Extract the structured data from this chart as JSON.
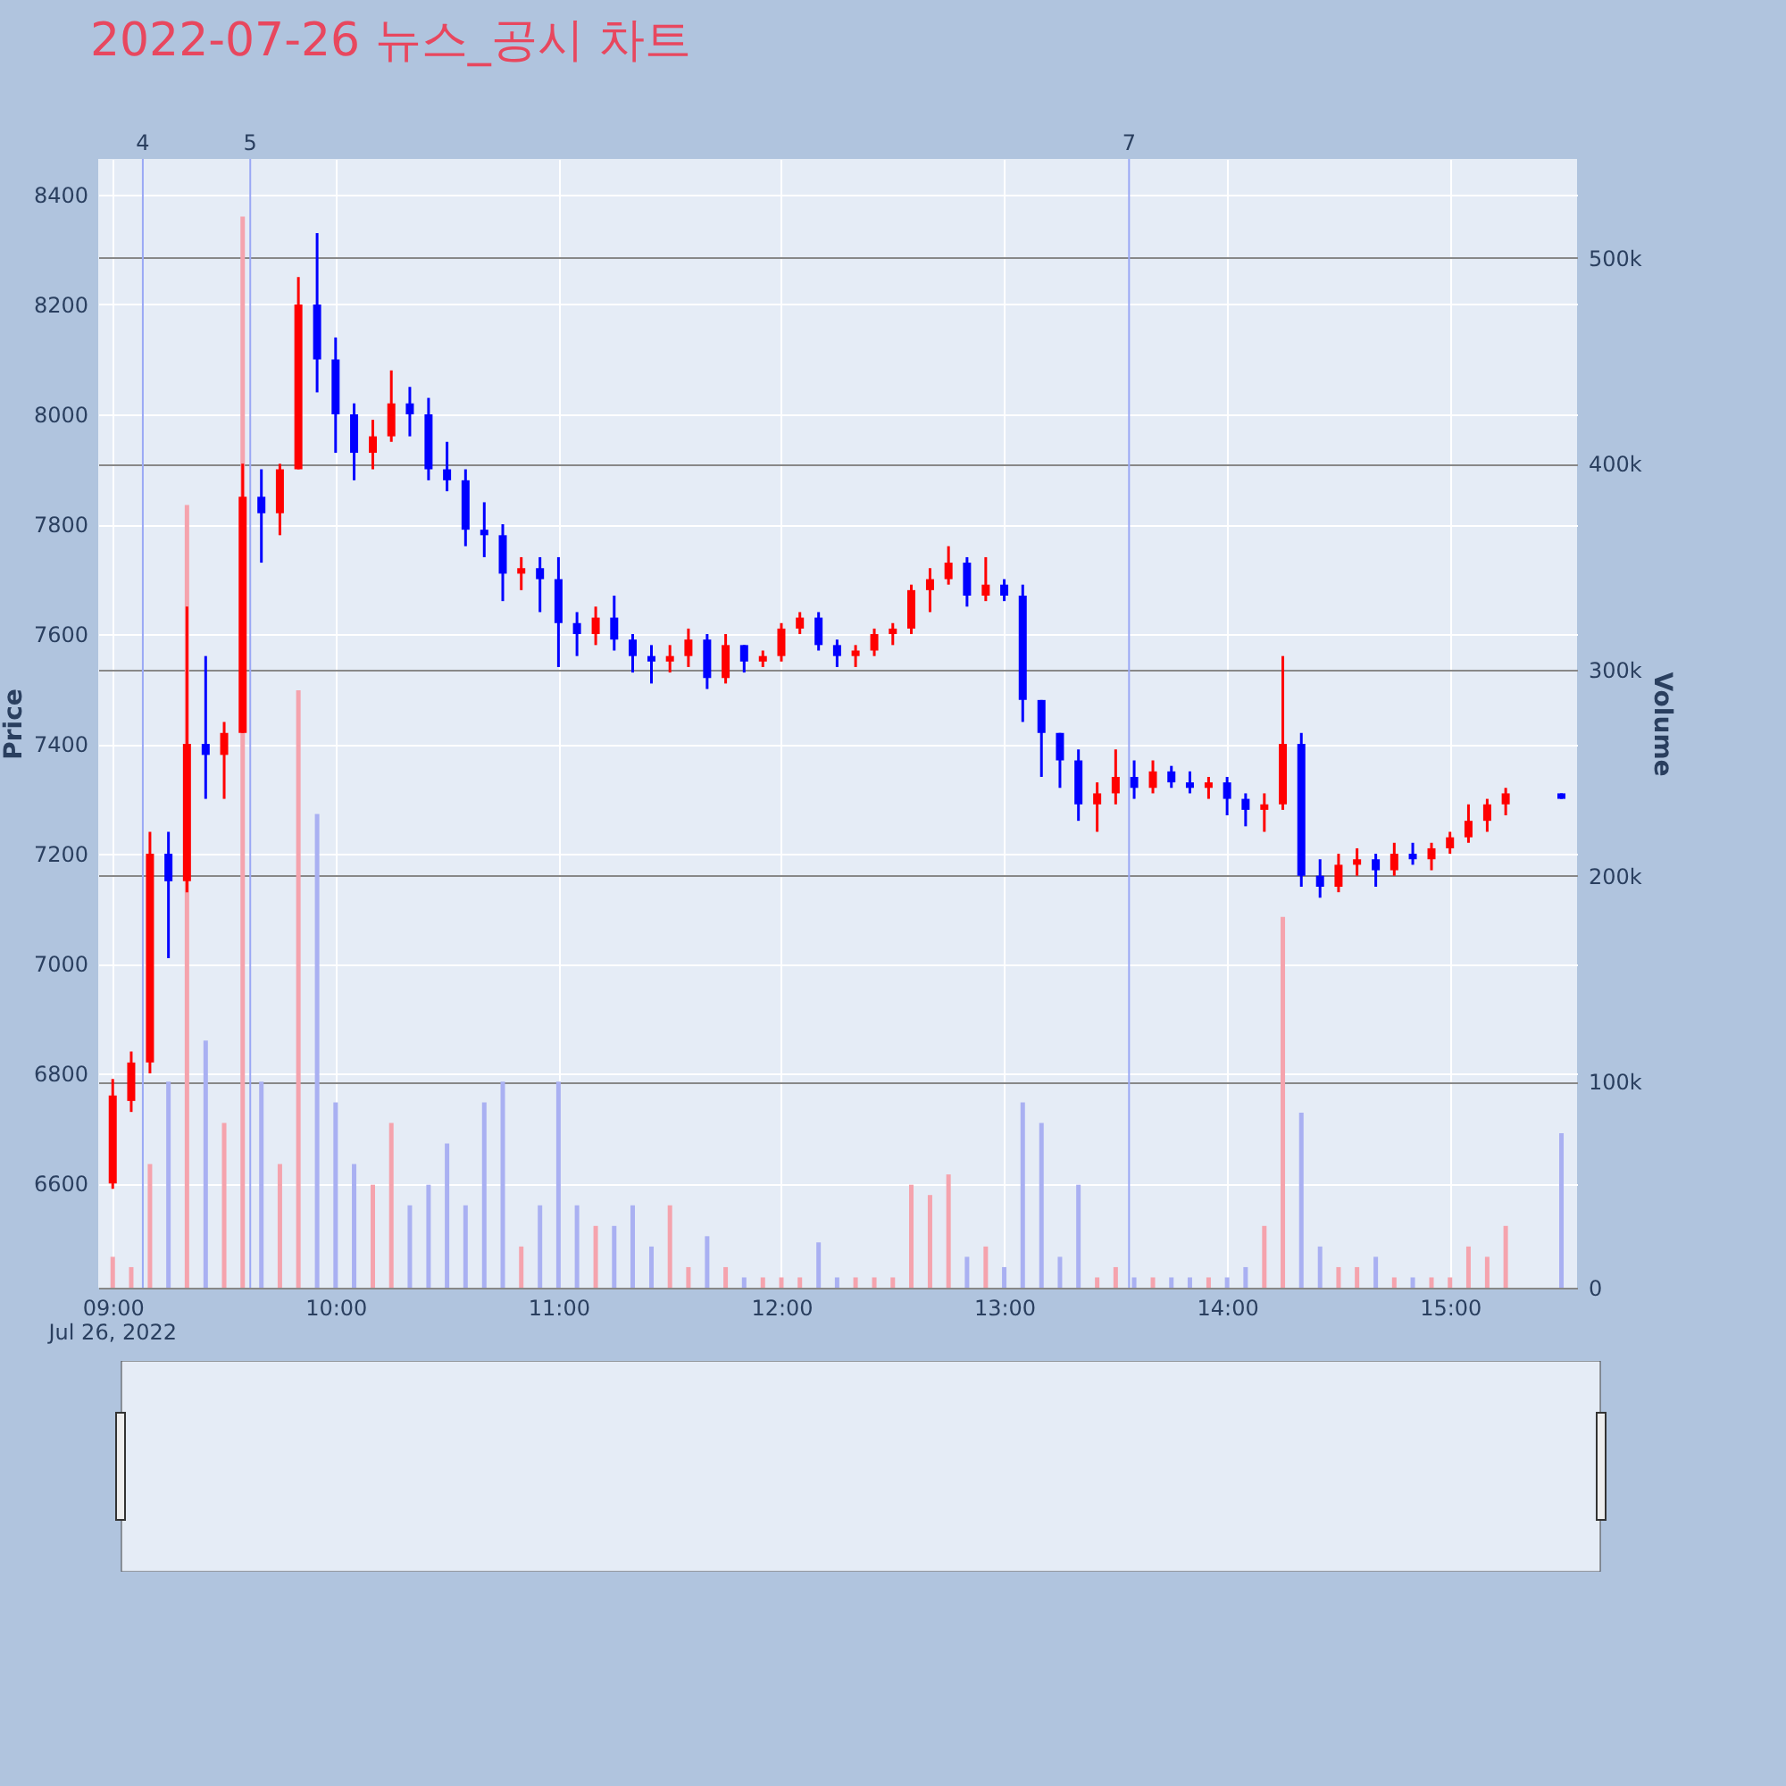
{
  "chart_data": {
    "type": "candlestick",
    "title": "2022-07-26 뉴스_공시 차트",
    "ylabel": "Price",
    "y2label": "Volume",
    "annotations": [
      "Jul 26, 2022",
      "4",
      "5",
      "7"
    ],
    "xlim": [
      8.975,
      15.53
    ],
    "xticks": [
      {
        "value": 9,
        "label": "09:00"
      },
      {
        "value": 10,
        "label": "10:00"
      },
      {
        "value": 11,
        "label": "11:00"
      },
      {
        "value": 12,
        "label": "12:00"
      },
      {
        "value": 13,
        "label": "13:00"
      },
      {
        "value": 14,
        "label": "14:00"
      },
      {
        "value": 15,
        "label": "15:00"
      }
    ],
    "ylim": [
      6410,
      8465
    ],
    "yticks": [
      6600,
      6800,
      7000,
      7200,
      7400,
      7600,
      7800,
      8000,
      8200,
      8400
    ],
    "y2lim": [
      0,
      548000
    ],
    "y2ticks": [
      {
        "value": 0,
        "label": "0"
      },
      {
        "value": 100000,
        "label": "100k"
      },
      {
        "value": 200000,
        "label": "200k"
      },
      {
        "value": 300000,
        "label": "300k"
      },
      {
        "value": 400000,
        "label": "400k"
      },
      {
        "value": 500000,
        "label": "500k"
      }
    ],
    "grid": true,
    "ref_lines": [
      {
        "axis": "x",
        "value": 9.135,
        "color": "#9aa8f5"
      },
      {
        "axis": "x",
        "value": 9.617,
        "color": "#9aa8f5"
      },
      {
        "axis": "x",
        "value": 13.56,
        "color": "#9aa8f5"
      }
    ],
    "series": [
      {
        "type": "bar",
        "axis": "y2",
        "x": [
          9,
          9.083,
          9.167,
          9.25,
          9.333,
          9.417,
          9.5,
          9.583,
          9.667,
          9.75,
          9.833,
          9.917,
          10,
          10.083,
          10.167,
          10.25,
          10.333,
          10.417,
          10.5,
          10.583,
          10.667,
          10.75,
          10.833,
          10.917,
          11,
          11.083,
          11.167,
          11.25,
          11.333,
          11.417,
          11.5,
          11.583,
          11.667,
          11.75,
          11.833,
          11.917,
          12,
          12.083,
          12.167,
          12.25,
          12.333,
          12.417,
          12.5,
          12.583,
          12.667,
          12.75,
          12.833,
          12.917,
          13,
          13.083,
          13.167,
          13.25,
          13.333,
          13.417,
          13.5,
          13.583,
          13.667,
          13.75,
          13.833,
          13.917,
          14,
          14.083,
          14.167,
          14.25,
          14.333,
          14.417,
          14.5,
          14.583,
          14.667,
          14.75,
          14.833,
          14.917,
          15,
          15.083,
          15.167,
          15.25,
          15.5
        ],
        "values": [
          15000,
          10000,
          60000,
          100000,
          380000,
          120000,
          80000,
          520000,
          100000,
          60000,
          290000,
          230000,
          90000,
          60000,
          50000,
          80000,
          40000,
          50000,
          70000,
          40000,
          90000,
          100000,
          20000,
          40000,
          100000,
          40000,
          30000,
          30000,
          40000,
          20000,
          40000,
          10000,
          25000,
          10000,
          5000,
          5000,
          5000,
          5000,
          22000,
          5000,
          5000,
          5000,
          5000,
          50000,
          45000,
          55000,
          15000,
          20000,
          10000,
          90000,
          80000,
          15000,
          50000,
          5000,
          10000,
          5000,
          5000,
          5000,
          5000,
          5000,
          5000,
          10000,
          30000,
          180000,
          85000,
          20000,
          10000,
          10000,
          15000,
          5000,
          5000,
          5000,
          5000,
          20000,
          15000,
          30000,
          75000
        ],
        "colors": [
          "#f5a3ad",
          "#f5a3ad",
          "#f5a3ad",
          "#a9b0f2",
          "#f5a3ad",
          "#a9b0f2",
          "#f5a3ad",
          "#f5a3ad",
          "#a9b0f2",
          "#f5a3ad",
          "#f5a3ad",
          "#a9b0f2",
          "#a9b0f2",
          "#a9b0f2",
          "#f5a3ad",
          "#f5a3ad",
          "#a9b0f2",
          "#a9b0f2",
          "#a9b0f2",
          "#a9b0f2",
          "#a9b0f2",
          "#a9b0f2",
          "#f5a3ad",
          "#a9b0f2",
          "#a9b0f2",
          "#a9b0f2",
          "#f5a3ad",
          "#a9b0f2",
          "#a9b0f2",
          "#a9b0f2",
          "#f5a3ad",
          "#f5a3ad",
          "#a9b0f2",
          "#f5a3ad",
          "#a9b0f2",
          "#f5a3ad",
          "#f5a3ad",
          "#f5a3ad",
          "#a9b0f2",
          "#a9b0f2",
          "#f5a3ad",
          "#f5a3ad",
          "#f5a3ad",
          "#f5a3ad",
          "#f5a3ad",
          "#f5a3ad",
          "#a9b0f2",
          "#f5a3ad",
          "#a9b0f2",
          "#a9b0f2",
          "#a9b0f2",
          "#a9b0f2",
          "#a9b0f2",
          "#f5a3ad",
          "#f5a3ad",
          "#a9b0f2",
          "#f5a3ad",
          "#a9b0f2",
          "#a9b0f2",
          "#f5a3ad",
          "#a9b0f2",
          "#a9b0f2",
          "#f5a3ad",
          "#f5a3ad",
          "#a9b0f2",
          "#a9b0f2",
          "#f5a3ad",
          "#f5a3ad",
          "#a9b0f2",
          "#f5a3ad",
          "#a9b0f2",
          "#f5a3ad",
          "#f5a3ad",
          "#f5a3ad",
          "#f5a3ad",
          "#f5a3ad",
          "#a9b0f2"
        ]
      },
      {
        "x": [
          9,
          9.083,
          9.167,
          9.25,
          9.333,
          9.417,
          9.5,
          9.583,
          9.667,
          9.75,
          9.833,
          9.917,
          10,
          10.083,
          10.167,
          10.25,
          10.333,
          10.417,
          10.5,
          10.583,
          10.667,
          10.75,
          10.833,
          10.917,
          11,
          11.083,
          11.167,
          11.25,
          11.333,
          11.417,
          11.5,
          11.583,
          11.667,
          11.75,
          11.833,
          11.917,
          12,
          12.083,
          12.167,
          12.25,
          12.333,
          12.417,
          12.5,
          12.583,
          12.667,
          12.75,
          12.833,
          12.917,
          13,
          13.083,
          13.167,
          13.25,
          13.333,
          13.417,
          13.5,
          13.583,
          13.667,
          13.75,
          13.833,
          13.917,
          14,
          14.083,
          14.167,
          14.25,
          14.333,
          14.417,
          14.5,
          14.583,
          14.667,
          14.75,
          14.833,
          14.917,
          15,
          15.083,
          15.167,
          15.25,
          15.5
        ],
        "ohlc": [
          [
            6600,
            6790,
            6590,
            6760
          ],
          [
            6750,
            6840,
            6730,
            6820
          ],
          [
            6820,
            7240,
            6800,
            7200
          ],
          [
            7200,
            7240,
            7010,
            7150
          ],
          [
            7150,
            7650,
            7130,
            7400
          ],
          [
            7400,
            7560,
            7300,
            7380
          ],
          [
            7380,
            7440,
            7300,
            7420
          ],
          [
            7420,
            7910,
            7420,
            7850
          ],
          [
            7850,
            7900,
            7730,
            7820
          ],
          [
            7820,
            7910,
            7780,
            7900
          ],
          [
            7900,
            8250,
            7900,
            8200
          ],
          [
            8200,
            8330,
            8040,
            8100
          ],
          [
            8100,
            8140,
            7930,
            8000
          ],
          [
            8000,
            8020,
            7880,
            7930
          ],
          [
            7930,
            7990,
            7900,
            7960
          ],
          [
            7960,
            8080,
            7950,
            8020
          ],
          [
            8020,
            8050,
            7960,
            8000
          ],
          [
            8000,
            8030,
            7880,
            7900
          ],
          [
            7900,
            7950,
            7860,
            7880
          ],
          [
            7880,
            7900,
            7760,
            7790
          ],
          [
            7790,
            7840,
            7740,
            7780
          ],
          [
            7780,
            7800,
            7660,
            7710
          ],
          [
            7710,
            7740,
            7680,
            7720
          ],
          [
            7720,
            7740,
            7640,
            7700
          ],
          [
            7700,
            7740,
            7540,
            7620
          ],
          [
            7620,
            7640,
            7560,
            7600
          ],
          [
            7600,
            7650,
            7580,
            7630
          ],
          [
            7630,
            7670,
            7570,
            7590
          ],
          [
            7590,
            7600,
            7530,
            7560
          ],
          [
            7560,
            7580,
            7510,
            7550
          ],
          [
            7550,
            7580,
            7530,
            7560
          ],
          [
            7560,
            7610,
            7540,
            7590
          ],
          [
            7590,
            7600,
            7500,
            7520
          ],
          [
            7520,
            7600,
            7510,
            7580
          ],
          [
            7580,
            7580,
            7530,
            7550
          ],
          [
            7550,
            7570,
            7540,
            7560
          ],
          [
            7560,
            7620,
            7550,
            7610
          ],
          [
            7610,
            7640,
            7600,
            7630
          ],
          [
            7630,
            7640,
            7570,
            7580
          ],
          [
            7580,
            7590,
            7540,
            7560
          ],
          [
            7560,
            7580,
            7540,
            7570
          ],
          [
            7570,
            7610,
            7560,
            7600
          ],
          [
            7600,
            7620,
            7580,
            7610
          ],
          [
            7610,
            7690,
            7600,
            7680
          ],
          [
            7680,
            7720,
            7640,
            7700
          ],
          [
            7700,
            7760,
            7690,
            7730
          ],
          [
            7730,
            7740,
            7650,
            7670
          ],
          [
            7670,
            7740,
            7660,
            7690
          ],
          [
            7690,
            7700,
            7660,
            7670
          ],
          [
            7670,
            7690,
            7440,
            7480
          ],
          [
            7480,
            7480,
            7340,
            7420
          ],
          [
            7420,
            7420,
            7320,
            7370
          ],
          [
            7370,
            7390,
            7260,
            7290
          ],
          [
            7290,
            7330,
            7240,
            7310
          ],
          [
            7310,
            7390,
            7290,
            7340
          ],
          [
            7340,
            7370,
            7300,
            7320
          ],
          [
            7320,
            7370,
            7310,
            7350
          ],
          [
            7350,
            7360,
            7320,
            7330
          ],
          [
            7330,
            7350,
            7310,
            7320
          ],
          [
            7320,
            7340,
            7300,
            7330
          ],
          [
            7330,
            7340,
            7270,
            7300
          ],
          [
            7300,
            7310,
            7250,
            7280
          ],
          [
            7280,
            7310,
            7240,
            7290
          ],
          [
            7290,
            7560,
            7280,
            7400
          ],
          [
            7400,
            7420,
            7140,
            7160
          ],
          [
            7160,
            7190,
            7120,
            7140
          ],
          [
            7140,
            7200,
            7130,
            7180
          ],
          [
            7180,
            7210,
            7160,
            7190
          ],
          [
            7190,
            7200,
            7140,
            7170
          ],
          [
            7170,
            7220,
            7160,
            7200
          ],
          [
            7200,
            7220,
            7180,
            7190
          ],
          [
            7190,
            7220,
            7170,
            7210
          ],
          [
            7210,
            7240,
            7200,
            7230
          ],
          [
            7230,
            7290,
            7220,
            7260
          ],
          [
            7260,
            7300,
            7240,
            7290
          ],
          [
            7290,
            7320,
            7270,
            7310
          ],
          [
            7310,
            7310,
            7300,
            7300
          ]
        ],
        "colors": [
          "#ff0000",
          "#ff0000",
          "#ff0000",
          "#0000ff",
          "#ff0000",
          "#0000ff",
          "#ff0000",
          "#ff0000",
          "#0000ff",
          "#ff0000",
          "#ff0000",
          "#0000ff",
          "#0000ff",
          "#0000ff",
          "#ff0000",
          "#ff0000",
          "#0000ff",
          "#0000ff",
          "#0000ff",
          "#0000ff",
          "#0000ff",
          "#0000ff",
          "#ff0000",
          "#0000ff",
          "#0000ff",
          "#0000ff",
          "#ff0000",
          "#0000ff",
          "#0000ff",
          "#0000ff",
          "#ff0000",
          "#ff0000",
          "#0000ff",
          "#ff0000",
          "#0000ff",
          "#ff0000",
          "#ff0000",
          "#ff0000",
          "#0000ff",
          "#0000ff",
          "#ff0000",
          "#ff0000",
          "#ff0000",
          "#ff0000",
          "#ff0000",
          "#ff0000",
          "#0000ff",
          "#ff0000",
          "#0000ff",
          "#0000ff",
          "#0000ff",
          "#0000ff",
          "#0000ff",
          "#ff0000",
          "#ff0000",
          "#0000ff",
          "#ff0000",
          "#0000ff",
          "#0000ff",
          "#ff0000",
          "#0000ff",
          "#0000ff",
          "#ff0000",
          "#ff0000",
          "#0000ff",
          "#0000ff",
          "#ff0000",
          "#ff0000",
          "#0000ff",
          "#ff0000",
          "#0000ff",
          "#ff0000",
          "#ff0000",
          "#ff0000",
          "#ff0000",
          "#ff0000",
          "#0000ff"
        ]
      }
    ]
  }
}
